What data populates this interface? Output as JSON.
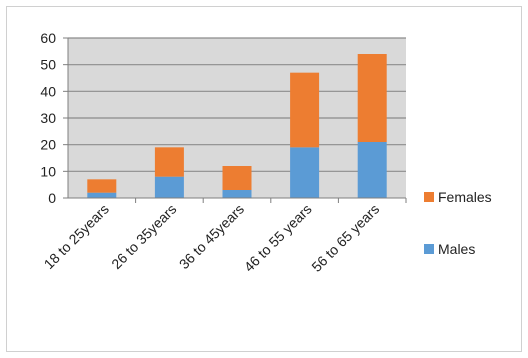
{
  "chart_data": {
    "type": "bar",
    "stacked": true,
    "categories": [
      "18 to 25years",
      "26 to 35years",
      "36 to 45years",
      "46 to 55 years",
      "56 to 65 years"
    ],
    "series": [
      {
        "name": "Males",
        "values": [
          2,
          8,
          3,
          19,
          21
        ],
        "color": "#5b9bd5"
      },
      {
        "name": "Females",
        "values": [
          5,
          11,
          9,
          28,
          33
        ],
        "color": "#ed7d31"
      }
    ],
    "ylim": [
      0,
      60
    ],
    "yticks": [
      0,
      10,
      20,
      30,
      40,
      50,
      60
    ],
    "grid": true,
    "legend_position": "right",
    "title": "",
    "xlabel": "",
    "ylabel": ""
  }
}
